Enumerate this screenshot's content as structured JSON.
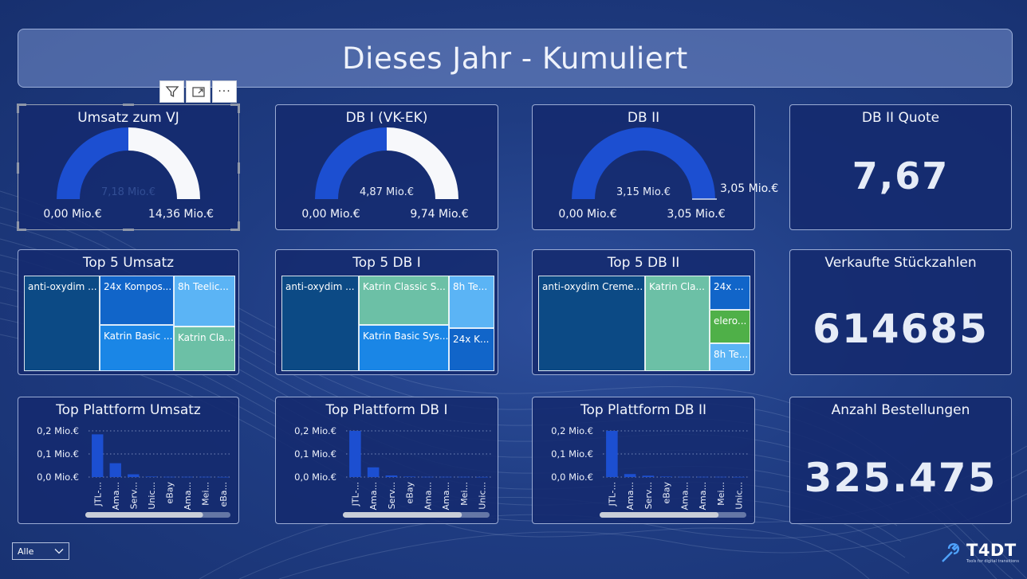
{
  "header": {
    "title": "Dieses Jahr - Kumuliert"
  },
  "visual_toolbar": {
    "filter_icon": "filter-icon",
    "focus_icon": "focus-mode-icon",
    "more_label": "···"
  },
  "gauges": [
    {
      "title": "Umsatz zum VJ",
      "value_label": "7,18 Mio.€",
      "value": 7.18,
      "min": 0,
      "max": 14.36,
      "min_label": "0,00 Mio.€",
      "max_label": "14,36 Mio.€",
      "target_label": ""
    },
    {
      "title": "DB I (VK-EK)",
      "value_label": "4,87 Mio.€",
      "value": 4.87,
      "min": 0,
      "max": 9.74,
      "min_label": "0,00 Mio.€",
      "max_label": "9,74 Mio.€",
      "target_label": ""
    },
    {
      "title": "DB II",
      "value_label": "3,15 Mio.€",
      "value": 3.15,
      "min": 0,
      "max": 3.05,
      "min_label": "0,00 Mio.€",
      "max_label": "3,05 Mio.€",
      "target_label": "3,05 Mio.€"
    }
  ],
  "kpis": [
    {
      "title": "DB II Quote",
      "value": "7,67"
    },
    {
      "title": "Verkaufte Stückzahlen",
      "value": "614685"
    },
    {
      "title": "Anzahl Bestellungen",
      "value": "325.475"
    }
  ],
  "treemaps": [
    {
      "title": "Top 5 Umsatz",
      "cells": [
        {
          "label": "anti-oxydim ...",
          "color": "#0c4a85"
        },
        {
          "label": "24x Kompos...",
          "color": "#1165c9"
        },
        {
          "label": "Katrin Basic ...",
          "color": "#1a86e6"
        },
        {
          "label": "8h Teelic...",
          "color": "#5bb4f5"
        },
        {
          "label": "Katrin Cla...",
          "color": "#6cc0a6"
        }
      ]
    },
    {
      "title": "Top 5 DB I",
      "cells": [
        {
          "label": "anti-oxydim ...",
          "color": "#0c4a85"
        },
        {
          "label": "Katrin Classic S...",
          "color": "#6cc0a6"
        },
        {
          "label": "Katrin Basic Sys...",
          "color": "#1a86e6"
        },
        {
          "label": "8h Te...",
          "color": "#5bb4f5"
        },
        {
          "label": "24x K...",
          "color": "#1165c9"
        }
      ]
    },
    {
      "title": "Top 5 DB II",
      "cells": [
        {
          "label": "anti-oxydim Creme...",
          "color": "#0c4a85"
        },
        {
          "label": "Katrin Cla...",
          "color": "#6cc0a6"
        },
        {
          "label": "24x ...",
          "color": "#1165c9"
        },
        {
          "label": "elero...",
          "color": "#4fb048"
        },
        {
          "label": "8h Te...",
          "color": "#5bb4f5"
        }
      ]
    }
  ],
  "chart_data": [
    {
      "type": "bar",
      "title": "Top Plattform Umsatz",
      "y_ticks": [
        "0,2 Mio.€",
        "0,1 Mio.€",
        "0,0 Mio.€"
      ],
      "ylim": [
        0,
        0.2
      ],
      "categories": [
        "JTL-...",
        "Ama...",
        "Serv...",
        "Unic...",
        "eBay",
        "Ama...",
        "Mei...",
        "eBa..."
      ],
      "values": [
        0.185,
        0.06,
        0.012,
        0.002,
        0.001,
        0.001,
        0.001,
        0.0005
      ]
    },
    {
      "type": "bar",
      "title": "Top Plattform DB I",
      "y_ticks": [
        "0,2 Mio.€",
        "0,1 Mio.€",
        "0,0 Mio.€"
      ],
      "ylim": [
        0,
        0.2
      ],
      "categories": [
        "JTL-...",
        "Ama...",
        "Serv...",
        "eBay",
        "Ama...",
        "Ama...",
        "Mei...",
        "Unic..."
      ],
      "values": [
        0.2,
        0.042,
        0.007,
        0.002,
        0.001,
        0.001,
        0.001,
        0.0005
      ]
    },
    {
      "type": "bar",
      "title": "Top Plattform DB II",
      "y_ticks": [
        "0,2 Mio.€",
        "0,1 Mio.€",
        "0,0 Mio.€"
      ],
      "ylim": [
        0,
        0.2
      ],
      "categories": [
        "JTL-...",
        "Ama...",
        "Serv...",
        "eBay",
        "Ama...",
        "Ama...",
        "Mei...",
        "Unic..."
      ],
      "values": [
        0.2,
        0.013,
        0.006,
        0.002,
        0.001,
        0.001,
        0.001,
        0.0005
      ]
    }
  ],
  "filter": {
    "selected": "Alle"
  },
  "logo": {
    "text": "T4DT",
    "tagline": "Tools for digital transitions"
  }
}
